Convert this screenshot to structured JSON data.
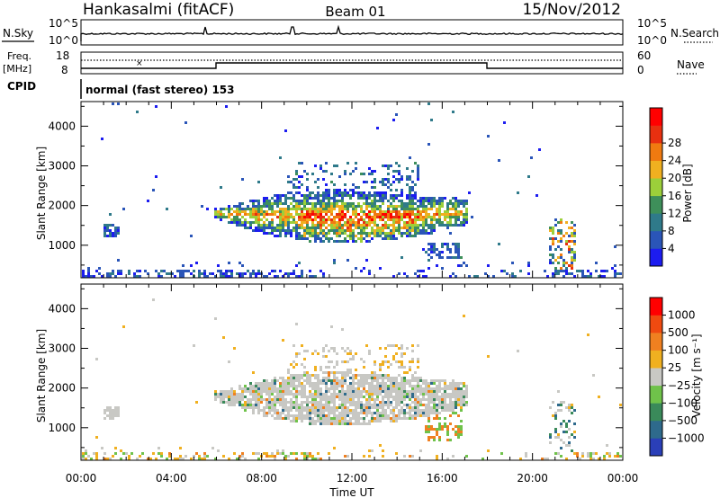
{
  "header": {
    "station": "Hankasalmi (fitACF)",
    "beam": "Beam 01",
    "date": "15/Nov/2012"
  },
  "noise_panel": {
    "left_label": "N.Sky",
    "right_label": "N.Search",
    "left_ticks": [
      "10^5",
      "10^0"
    ],
    "right_ticks": [
      "10^5",
      "10^0"
    ]
  },
  "freq_panel": {
    "left_label_top": "Freq.",
    "left_label_bottom": "[MHz]",
    "left_ticks": [
      "18",
      "8"
    ],
    "right_label": "Nave",
    "right_ticks": [
      "60",
      "0"
    ]
  },
  "cpid": {
    "label": "CPID",
    "text": "normal (fast stereo) 153"
  },
  "chart_data": [
    {
      "type": "heatmap",
      "name": "power",
      "ylabel": "Slant Range [km]",
      "yticks": [
        "1000",
        "2000",
        "3000",
        "4000"
      ],
      "colorbar_label": "Power [dB]",
      "colorbar_ticks": [
        "4",
        "8",
        "12",
        "16",
        "20",
        "24",
        "28"
      ],
      "colorbar_colors": [
        "#1c1cf0",
        "#2a55b8",
        "#2f7a8a",
        "#3e8f5a",
        "#9ccf3a",
        "#f0b020",
        "#f07a10",
        "#e83010",
        "#ff0000"
      ]
    },
    {
      "type": "heatmap",
      "name": "velocity",
      "ylabel": "Slant Range [km]",
      "yticks": [
        "1000",
        "2000",
        "3000",
        "4000"
      ],
      "colorbar_label": "Velocity [m s⁻¹]",
      "colorbar_ticks": [
        "1000",
        "500",
        "100",
        "25",
        "−25",
        "−100",
        "−500",
        "−1000"
      ],
      "colorbar_colors": [
        "#2a3fb8",
        "#2e6a8c",
        "#3a8a5a",
        "#6fc24a",
        "#c8c8c4",
        "#f0b020",
        "#f08020",
        "#f04a10",
        "#ff0000"
      ]
    }
  ],
  "xaxis": {
    "ticks": [
      "00:00",
      "04:00",
      "08:00",
      "12:00",
      "16:00",
      "20:00",
      "00:00"
    ],
    "label": "Time UT"
  }
}
